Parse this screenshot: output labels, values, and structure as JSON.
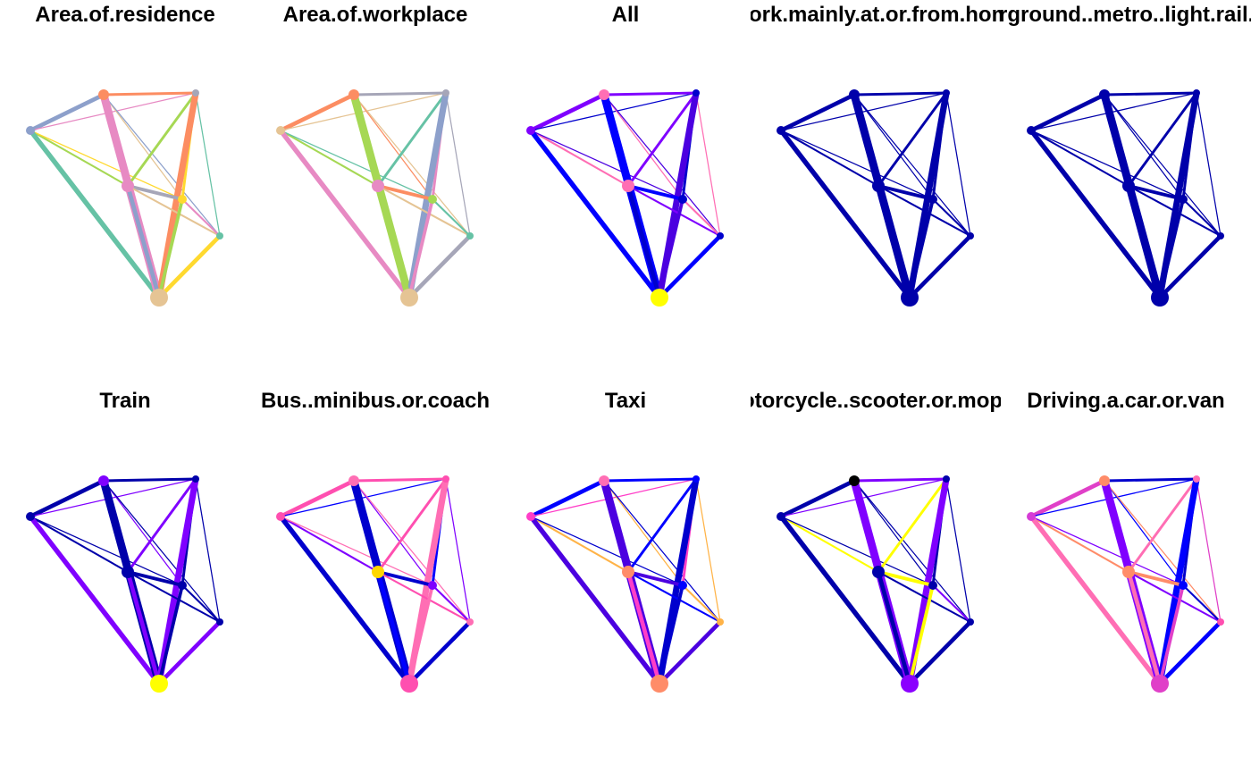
{
  "figure": {
    "panels": [
      {
        "title": "Area.of.residence",
        "node_colors": [
          "#8DA0CB",
          "#FC8D62",
          "#A6A6B8",
          "#E78AC3",
          "#FFD92F",
          "#66C2A5",
          "#E5C494"
        ],
        "edge_palette": "pastel"
      },
      {
        "title": "Area.of.workplace",
        "node_colors": [
          "#E5C494",
          "#FC8D62",
          "#A6A6B8",
          "#E78AC3",
          "#A6D854",
          "#66C2A5",
          "#E5C494"
        ],
        "edge_palette": "pastel-work"
      },
      {
        "title": "All",
        "node_colors": [
          "#7F00FF",
          "#FF6EB4",
          "#0000CD",
          "#FF6EB4",
          "#0000CD",
          "#0000CD",
          "#FFFF00"
        ],
        "edge_palette": "blue-violet"
      },
      {
        "title": "Work.mainly.at.or.from.home",
        "node_colors": [
          "#0000AA",
          "#0000AA",
          "#0000AA",
          "#0000AA",
          "#0000AA",
          "#0000AA",
          "#0000AA"
        ],
        "edge_palette": "dark-blue"
      },
      {
        "title": "Underground..metro..light.rail..tram",
        "node_colors": [
          "#0000AA",
          "#0000AA",
          "#0000AA",
          "#0000AA",
          "#0000AA",
          "#0000AA",
          "#0000AA"
        ],
        "edge_palette": "dark-blue"
      },
      {
        "title": "Train",
        "node_colors": [
          "#0000AA",
          "#7F00FF",
          "#0000AA",
          "#0000AA",
          "#0000AA",
          "#0000AA",
          "#FFFF00"
        ],
        "edge_palette": "blue-train"
      },
      {
        "title": "Bus..minibus.or.coach",
        "node_colors": [
          "#FF4FB0",
          "#FF6EB4",
          "#FF4FB0",
          "#FFD700",
          "#7F00FF",
          "#FF6EB4",
          "#FF4FB0"
        ],
        "edge_palette": "pink-blue"
      },
      {
        "title": "Taxi",
        "node_colors": [
          "#FF3EC8",
          "#FF6EB4",
          "#0000FF",
          "#FF8C69",
          "#0000FF",
          "#FFB347",
          "#FF8C69"
        ],
        "edge_palette": "blue-taxi"
      },
      {
        "title": "Motorcycle..scooter.or.moped",
        "node_colors": [
          "#0000AA",
          "#000000",
          "#0000AA",
          "#0000AA",
          "#0000AA",
          "#0000AA",
          "#8B00FF"
        ],
        "edge_palette": "dark-blue-moto"
      },
      {
        "title": "Driving.a.car.or.van",
        "node_colors": [
          "#D63CD6",
          "#FF8C69",
          "#FF6EB4",
          "#FF8C69",
          "#0000FF",
          "#FF4FB0",
          "#E040C8"
        ],
        "edge_palette": "car"
      }
    ]
  }
}
